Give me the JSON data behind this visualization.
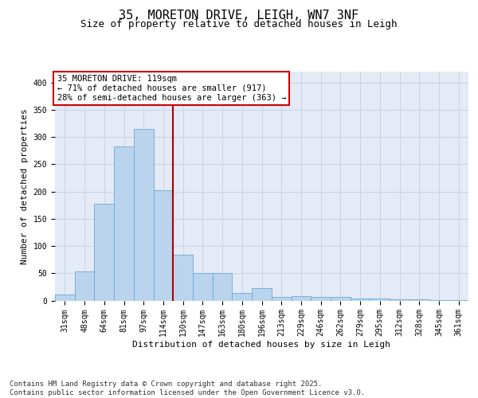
{
  "title": "35, MORETON DRIVE, LEIGH, WN7 3NF",
  "subtitle": "Size of property relative to detached houses in Leigh",
  "xlabel": "Distribution of detached houses by size in Leigh",
  "ylabel": "Number of detached properties",
  "categories": [
    "31sqm",
    "48sqm",
    "64sqm",
    "81sqm",
    "97sqm",
    "114sqm",
    "130sqm",
    "147sqm",
    "163sqm",
    "180sqm",
    "196sqm",
    "213sqm",
    "229sqm",
    "246sqm",
    "262sqm",
    "279sqm",
    "295sqm",
    "312sqm",
    "328sqm",
    "345sqm",
    "361sqm"
  ],
  "bar_values": [
    11,
    54,
    178,
    283,
    315,
    202,
    84,
    51,
    50,
    14,
    23,
    7,
    8,
    6,
    6,
    4,
    3,
    2,
    2,
    1,
    1
  ],
  "bar_color": "#bad4ee",
  "bar_edge_color": "#6aaad4",
  "annotation_text": "35 MORETON DRIVE: 119sqm\n← 71% of detached houses are smaller (917)\n28% of semi-detached houses are larger (363) →",
  "annotation_box_facecolor": "#ffffff",
  "annotation_border_color": "#cc0000",
  "vline_color": "#aa0000",
  "vline_x": 5.5,
  "ylim": [
    0,
    420
  ],
  "yticks": [
    0,
    50,
    100,
    150,
    200,
    250,
    300,
    350,
    400
  ],
  "grid_color": "#c8d4e4",
  "bg_color": "#e4eaf6",
  "footer": "Contains HM Land Registry data © Crown copyright and database right 2025.\nContains public sector information licensed under the Open Government Licence v3.0.",
  "title_fontsize": 11,
  "subtitle_fontsize": 9,
  "axis_label_fontsize": 8,
  "tick_fontsize": 7,
  "annotation_fontsize": 7.5,
  "footer_fontsize": 6.5
}
